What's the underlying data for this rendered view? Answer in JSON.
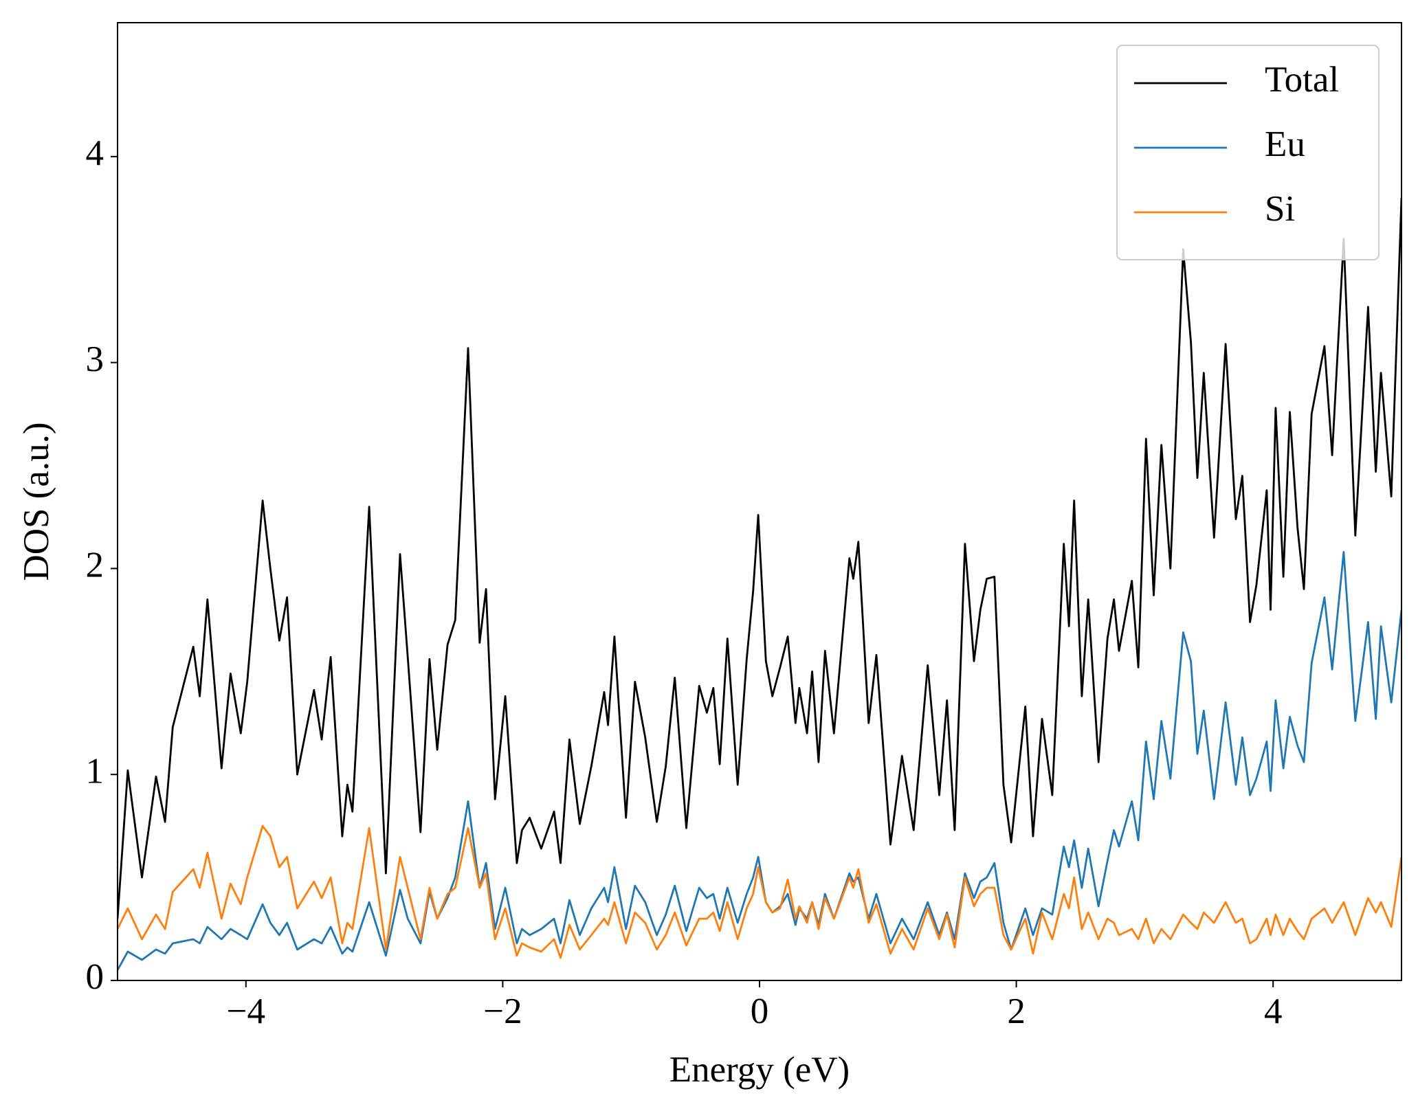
{
  "chart_data": {
    "type": "line",
    "xlabel": "Energy (eV)",
    "ylabel": "DOS (a.u.)",
    "x": [
      -5.0,
      -4.92,
      -4.81,
      -4.7,
      -4.63,
      -4.57,
      -4.41,
      -4.36,
      -4.3,
      -4.19,
      -4.12,
      -4.04,
      -3.99,
      -3.87,
      -3.81,
      -3.74,
      -3.68,
      -3.6,
      -3.47,
      -3.41,
      -3.34,
      -3.25,
      -3.21,
      -3.17,
      -3.04,
      -2.91,
      -2.8,
      -2.74,
      -2.64,
      -2.57,
      -2.51,
      -2.43,
      -2.37,
      -2.27,
      -2.18,
      -2.13,
      -2.06,
      -1.98,
      -1.89,
      -1.85,
      -1.79,
      -1.7,
      -1.6,
      -1.55,
      -1.48,
      -1.4,
      -1.31,
      -1.21,
      -1.18,
      -1.13,
      -1.04,
      -0.97,
      -0.89,
      -0.8,
      -0.73,
      -0.66,
      -0.57,
      -0.47,
      -0.41,
      -0.36,
      -0.31,
      -0.25,
      -0.17,
      -0.1,
      -0.05,
      -0.01,
      0.05,
      0.1,
      0.16,
      0.22,
      0.28,
      0.31,
      0.37,
      0.41,
      0.46,
      0.51,
      0.58,
      0.7,
      0.73,
      0.77,
      0.85,
      0.91,
      1.02,
      1.11,
      1.2,
      1.31,
      1.4,
      1.46,
      1.52,
      1.6,
      1.67,
      1.72,
      1.77,
      1.83,
      1.9,
      1.96,
      2.07,
      2.13,
      2.2,
      2.28,
      2.37,
      2.41,
      2.45,
      2.51,
      2.56,
      2.64,
      2.71,
      2.76,
      2.8,
      2.9,
      2.95,
      3.01,
      3.07,
      3.13,
      3.2,
      3.3,
      3.36,
      3.41,
      3.46,
      3.54,
      3.63,
      3.71,
      3.76,
      3.82,
      3.87,
      3.95,
      3.98,
      4.02,
      4.08,
      4.13,
      4.19,
      4.24,
      4.3,
      4.4,
      4.46,
      4.55,
      4.64,
      4.74,
      4.8,
      4.84,
      4.92,
      5.0
    ],
    "series": [
      {
        "name": "Total",
        "color": "#000000",
        "values": [
          0.3,
          1.02,
          0.5,
          0.99,
          0.77,
          1.23,
          1.62,
          1.38,
          1.85,
          1.03,
          1.49,
          1.2,
          1.45,
          2.33,
          2.0,
          1.65,
          1.86,
          1.0,
          1.41,
          1.17,
          1.57,
          0.7,
          0.95,
          0.82,
          2.3,
          0.52,
          2.07,
          1.57,
          0.72,
          1.56,
          1.12,
          1.63,
          1.75,
          3.07,
          1.64,
          1.9,
          0.88,
          1.38,
          0.57,
          0.73,
          0.79,
          0.64,
          0.82,
          0.57,
          1.17,
          0.76,
          1.04,
          1.4,
          1.24,
          1.67,
          0.79,
          1.45,
          1.18,
          0.77,
          1.04,
          1.47,
          0.74,
          1.43,
          1.3,
          1.42,
          1.05,
          1.66,
          0.95,
          1.56,
          1.89,
          2.26,
          1.55,
          1.38,
          1.52,
          1.67,
          1.25,
          1.42,
          1.2,
          1.5,
          1.06,
          1.6,
          1.2,
          2.05,
          1.95,
          2.13,
          1.25,
          1.58,
          0.66,
          1.09,
          0.73,
          1.53,
          0.9,
          1.36,
          0.73,
          2.12,
          1.55,
          1.8,
          1.95,
          1.96,
          0.95,
          0.67,
          1.33,
          0.7,
          1.27,
          0.9,
          2.12,
          1.72,
          2.33,
          1.38,
          1.85,
          1.06,
          1.66,
          1.85,
          1.6,
          1.94,
          1.52,
          2.63,
          1.87,
          2.6,
          2.0,
          3.55,
          3.1,
          2.44,
          2.95,
          2.15,
          3.09,
          2.24,
          2.45,
          1.74,
          1.92,
          2.38,
          1.8,
          2.78,
          1.96,
          2.76,
          2.2,
          1.9,
          2.75,
          3.08,
          2.55,
          3.6,
          2.16,
          3.27,
          2.47,
          2.95,
          2.35,
          3.8
        ]
      },
      {
        "name": "Eu",
        "color": "#1f77b4",
        "values": [
          0.05,
          0.14,
          0.1,
          0.15,
          0.13,
          0.18,
          0.2,
          0.18,
          0.26,
          0.2,
          0.25,
          0.22,
          0.2,
          0.37,
          0.28,
          0.22,
          0.28,
          0.15,
          0.2,
          0.18,
          0.26,
          0.13,
          0.16,
          0.14,
          0.38,
          0.12,
          0.44,
          0.3,
          0.18,
          0.43,
          0.3,
          0.4,
          0.5,
          0.87,
          0.45,
          0.57,
          0.25,
          0.45,
          0.18,
          0.25,
          0.22,
          0.25,
          0.3,
          0.18,
          0.39,
          0.22,
          0.35,
          0.45,
          0.38,
          0.55,
          0.25,
          0.46,
          0.38,
          0.22,
          0.32,
          0.46,
          0.24,
          0.45,
          0.4,
          0.42,
          0.3,
          0.45,
          0.28,
          0.42,
          0.5,
          0.6,
          0.38,
          0.33,
          0.36,
          0.42,
          0.27,
          0.35,
          0.3,
          0.38,
          0.27,
          0.42,
          0.3,
          0.52,
          0.48,
          0.5,
          0.3,
          0.42,
          0.18,
          0.3,
          0.2,
          0.38,
          0.22,
          0.33,
          0.2,
          0.52,
          0.4,
          0.48,
          0.5,
          0.57,
          0.28,
          0.15,
          0.35,
          0.22,
          0.35,
          0.32,
          0.65,
          0.55,
          0.68,
          0.45,
          0.64,
          0.36,
          0.58,
          0.73,
          0.65,
          0.87,
          0.68,
          1.16,
          0.88,
          1.26,
          0.98,
          1.69,
          1.55,
          1.1,
          1.31,
          0.88,
          1.35,
          0.95,
          1.18,
          0.9,
          0.98,
          1.16,
          0.92,
          1.36,
          1.03,
          1.28,
          1.14,
          1.06,
          1.54,
          1.86,
          1.51,
          2.08,
          1.26,
          1.74,
          1.27,
          1.72,
          1.35,
          1.8
        ]
      },
      {
        "name": "Si",
        "color": "#ff7f0e",
        "values": [
          0.25,
          0.35,
          0.2,
          0.32,
          0.25,
          0.43,
          0.54,
          0.45,
          0.62,
          0.3,
          0.47,
          0.37,
          0.5,
          0.75,
          0.7,
          0.55,
          0.6,
          0.35,
          0.48,
          0.4,
          0.5,
          0.18,
          0.28,
          0.25,
          0.74,
          0.15,
          0.6,
          0.45,
          0.2,
          0.45,
          0.3,
          0.42,
          0.45,
          0.74,
          0.45,
          0.52,
          0.2,
          0.35,
          0.12,
          0.18,
          0.16,
          0.14,
          0.2,
          0.11,
          0.27,
          0.15,
          0.22,
          0.3,
          0.27,
          0.38,
          0.18,
          0.33,
          0.28,
          0.15,
          0.22,
          0.33,
          0.17,
          0.3,
          0.3,
          0.33,
          0.24,
          0.38,
          0.2,
          0.35,
          0.42,
          0.55,
          0.38,
          0.33,
          0.35,
          0.49,
          0.3,
          0.36,
          0.28,
          0.38,
          0.25,
          0.4,
          0.3,
          0.5,
          0.45,
          0.54,
          0.28,
          0.37,
          0.13,
          0.25,
          0.15,
          0.35,
          0.2,
          0.32,
          0.16,
          0.5,
          0.36,
          0.42,
          0.45,
          0.45,
          0.22,
          0.15,
          0.3,
          0.13,
          0.33,
          0.2,
          0.42,
          0.35,
          0.5,
          0.25,
          0.33,
          0.2,
          0.3,
          0.28,
          0.22,
          0.25,
          0.2,
          0.3,
          0.18,
          0.25,
          0.2,
          0.32,
          0.28,
          0.25,
          0.33,
          0.28,
          0.38,
          0.28,
          0.3,
          0.18,
          0.2,
          0.3,
          0.22,
          0.32,
          0.22,
          0.3,
          0.24,
          0.2,
          0.3,
          0.35,
          0.28,
          0.38,
          0.22,
          0.4,
          0.33,
          0.38,
          0.26,
          0.6
        ]
      }
    ],
    "xlim": [
      -5,
      5
    ],
    "ylim": [
      0,
      4.65
    ],
    "xticks": [
      {
        "value": -4,
        "label": "−4"
      },
      {
        "value": -2,
        "label": "−2"
      },
      0,
      2,
      4
    ],
    "yticks": [
      0,
      1,
      2,
      3,
      4
    ],
    "legend": "upper right"
  }
}
